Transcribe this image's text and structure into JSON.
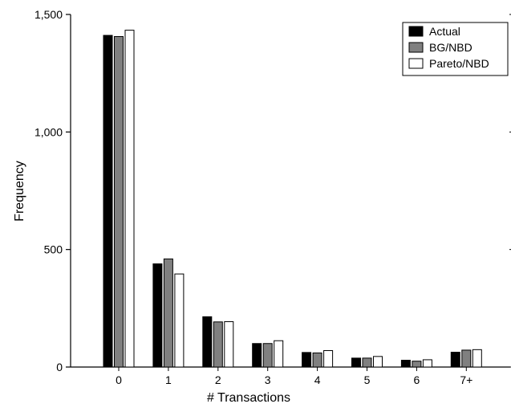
{
  "chart_data": {
    "type": "bar",
    "title": "",
    "xlabel": "# Transactions",
    "ylabel": "Frequency",
    "categories": [
      "0",
      "1",
      "2",
      "3",
      "4",
      "5",
      "6",
      "7+"
    ],
    "ylim": [
      0,
      1500
    ],
    "yticks": [
      0,
      500,
      1000,
      1500
    ],
    "ytick_labels": [
      "0",
      "500",
      "1,000",
      "1,500"
    ],
    "legend_position": "top-right",
    "grid": false,
    "series": [
      {
        "name": "Actual",
        "color": "#000000",
        "values": [
          1411,
          439,
          214,
          100,
          62,
          38,
          29,
          63
        ]
      },
      {
        "name": "BG/NBD",
        "color": "#808080",
        "values": [
          1406,
          460,
          192,
          100,
          60,
          38,
          25,
          72
        ]
      },
      {
        "name": "Pareto/NBD",
        "color": "#ffffff",
        "values": [
          1433,
          396,
          193,
          112,
          70,
          45,
          31,
          74
        ]
      }
    ]
  }
}
